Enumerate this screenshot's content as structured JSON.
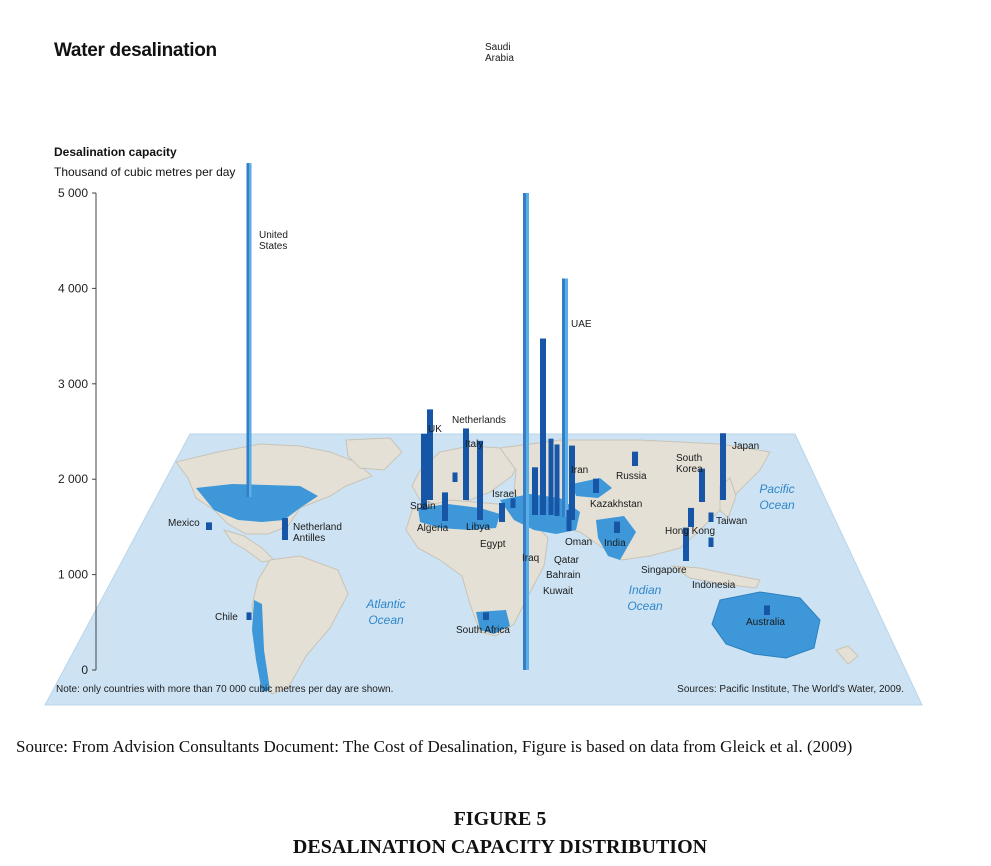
{
  "figure": {
    "source_caption": "Source: From Advision Consultants Document: The Cost of Desalination, Figure is based on data from Gleick et al. (2009)",
    "figure_number": "FIGURE 5",
    "figure_title": "DESALINATION CAPACITY DISTRIBUTION"
  },
  "map_labels": {
    "atlantic": [
      "Atlantic",
      "Ocean"
    ],
    "pacific": [
      "Pacific",
      "Ocean"
    ],
    "indian": [
      "Indian",
      "Ocean"
    ]
  },
  "colors": {
    "map_background": "#cde3f3",
    "land": "#e4e0d6",
    "highlighted_land": "#3d97d8",
    "bar_dark": "#1756a6",
    "bar_light": "#5aaee8",
    "ocean_text": "#2f86c9"
  },
  "chart_data": {
    "type": "bar",
    "title": "Water desalination",
    "ylabel": "Desalination capacity",
    "yunit": "Thousand of cubic metres per day",
    "ylim": [
      0,
      5000
    ],
    "yticks": [
      "0",
      "1 000",
      "2 000",
      "3 000",
      "4 000",
      "5 000"
    ],
    "note": "Note: only countries with more than 70 000 cubic metres per day are shown.",
    "source": "Sources: Pacific Institute, The World's Water, 2009.",
    "series": [
      {
        "values": [
          {
            "label": "United States",
            "label_lines": [
              "United",
              "States"
            ],
            "value": 3500
          },
          {
            "label": "Mexico",
            "value": 80
          },
          {
            "label": "Netherland Antilles",
            "label_lines": [
              "Netherland",
              "Antilles"
            ],
            "value": 230
          },
          {
            "label": "Chile",
            "value": 80
          },
          {
            "label": "UK",
            "value": 950
          },
          {
            "label": "Netherlands",
            "value": 100
          },
          {
            "label": "Spain",
            "value": 800
          },
          {
            "label": "Italy",
            "value": 750
          },
          {
            "label": "Algeria",
            "value": 300
          },
          {
            "label": "Libya",
            "value": 830
          },
          {
            "label": "Egypt",
            "value": 200
          },
          {
            "label": "Israel",
            "value": 100
          },
          {
            "label": "Saudi Arabia",
            "label_lines": [
              "Saudi",
              "Arabia"
            ],
            "value": 5000
          },
          {
            "label": "Iraq",
            "value": 500
          },
          {
            "label": "Kuwait",
            "value": 1850
          },
          {
            "label": "Bahrain",
            "value": 800
          },
          {
            "label": "Qatar",
            "value": 750
          },
          {
            "label": "UAE",
            "value": 2500
          },
          {
            "label": "Iran",
            "value": 780
          },
          {
            "label": "Oman",
            "value": 220
          },
          {
            "label": "Kazakhstan",
            "value": 150
          },
          {
            "label": "India",
            "value": 120
          },
          {
            "label": "Russia",
            "value": 150
          },
          {
            "label": "South Korea",
            "label_lines": [
              "South",
              "Korea"
            ],
            "value": 350
          },
          {
            "label": "Japan",
            "value": 700
          },
          {
            "label": "Taiwan",
            "value": 100
          },
          {
            "label": "Hong Kong",
            "value": 200
          },
          {
            "label": "Singapore",
            "value": 350
          },
          {
            "label": "Indonesia",
            "value": 100
          },
          {
            "label": "South Africa",
            "value": 80
          },
          {
            "label": "Australia",
            "value": 100
          }
        ]
      }
    ]
  }
}
